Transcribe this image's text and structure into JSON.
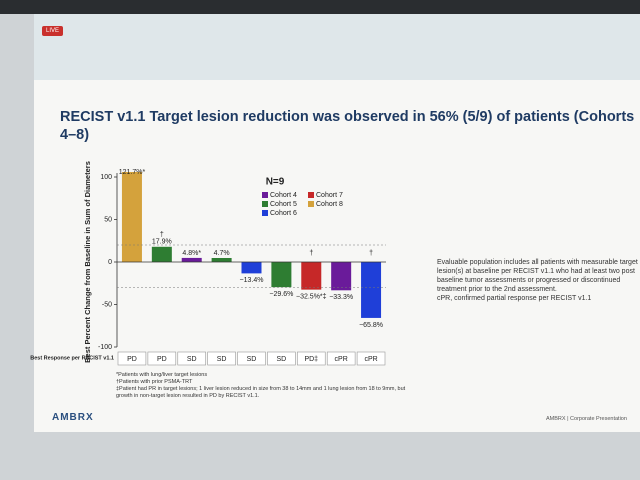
{
  "slide": {
    "badge": "LIVE",
    "title": "RECIST v1.1 Target lesion reduction was observed in 56% (5/9) of patients (Cohorts 4–8)",
    "note": "Evaluable population includes all patients with measurable target lesion(s) at baseline per RECIST v1.1 who had at least two post baseline tumor assessments or progressed or discontinued treatment prior to the 2nd assessment.",
    "note_abbrev": "cPR, confirmed partial response per RECIST v1.1",
    "footnotes": [
      "*Patients with lung/liver target lesions",
      "†Patients with prior PSMA-TRT",
      "‡Patient had PR in target lesions; 1 liver lesion reduced in size from 38 to 14mm and 1 lung lesion from 18 to 9mm, but growth in non-target lesion resulted in PD by RECIST v1.1."
    ],
    "logo": "AMBRX",
    "footer": "AMBRX  |  Corporate Presentation"
  },
  "chart_data": {
    "type": "bar",
    "annotation": "N=9",
    "y_label": "Best Percent Change from Baseline in Sum of Diameters",
    "row_label": "Best Response per RECIST v1.1",
    "categories": [
      "PD",
      "PD",
      "SD",
      "SD",
      "SD",
      "SD",
      "PD‡",
      "cPR",
      "cPR"
    ],
    "values": [
      121.7,
      17.9,
      4.8,
      4.7,
      -13.4,
      -29.6,
      -32.5,
      -33.3,
      -65.8
    ],
    "value_labels": [
      "121.7%*",
      "17.9%",
      "4.8%*",
      "4.7%",
      "−13.4%",
      "−29.6%",
      "−32.5%*‡",
      "−33.3%",
      "−65.8%"
    ],
    "markers": [
      null,
      "†",
      null,
      null,
      null,
      null,
      "†",
      null,
      "†"
    ],
    "colors": [
      "#d4a23c",
      "#2e7d32",
      "#6a1b9a",
      "#2e7d32",
      "#1f3fd8",
      "#2e7d32",
      "#c62828",
      "#6a1b9a",
      "#1f3fd8"
    ],
    "legend": [
      {
        "name": "Cohort 4",
        "color": "#6a1b9a"
      },
      {
        "name": "Cohort 7",
        "color": "#c62828"
      },
      {
        "name": "Cohort 5",
        "color": "#2e7d32"
      },
      {
        "name": "Cohort 8",
        "color": "#d4a23c"
      },
      {
        "name": "Cohort 6",
        "color": "#1f3fd8"
      }
    ],
    "reference_lines": [
      20,
      -30
    ],
    "ylim": [
      -100,
      100
    ],
    "yticks": [
      -100,
      -50,
      0,
      50,
      100
    ]
  }
}
